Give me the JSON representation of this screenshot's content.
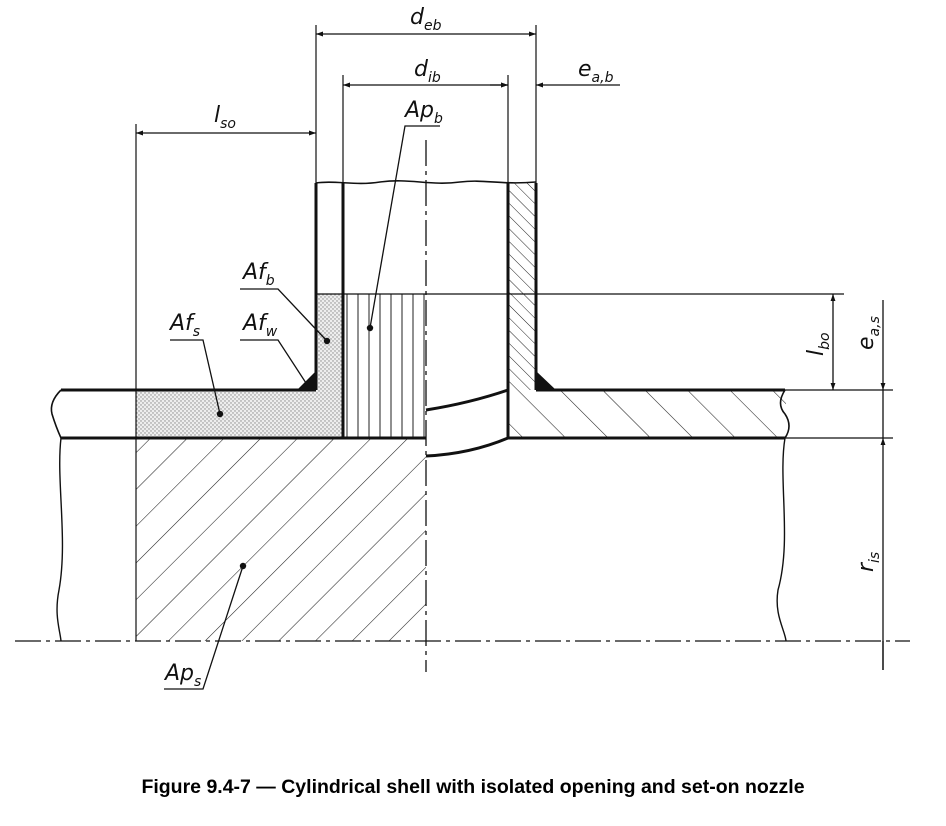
{
  "caption": "Figure 9.4-7 — Cylindrical shell with isolated opening and set-on nozzle",
  "labels": {
    "deb": {
      "main": "d",
      "sub": "eb"
    },
    "dib": {
      "main": "d",
      "sub": "ib"
    },
    "eab": {
      "main": "e",
      "sub": "a,b"
    },
    "lso": {
      "main": "l",
      "sub": "so"
    },
    "apb": {
      "main": "Ap",
      "sub": "b"
    },
    "afb": {
      "main": "Af",
      "sub": "b"
    },
    "afs": {
      "main": "Af",
      "sub": "s"
    },
    "afw": {
      "main": "Af",
      "sub": "w"
    },
    "lbo": {
      "main": "l",
      "sub": "bo"
    },
    "eas": {
      "main": "e",
      "sub": "a,s"
    },
    "ris": {
      "main": "r",
      "sub": "is"
    },
    "aps": {
      "main": "Ap",
      "sub": "s"
    }
  }
}
